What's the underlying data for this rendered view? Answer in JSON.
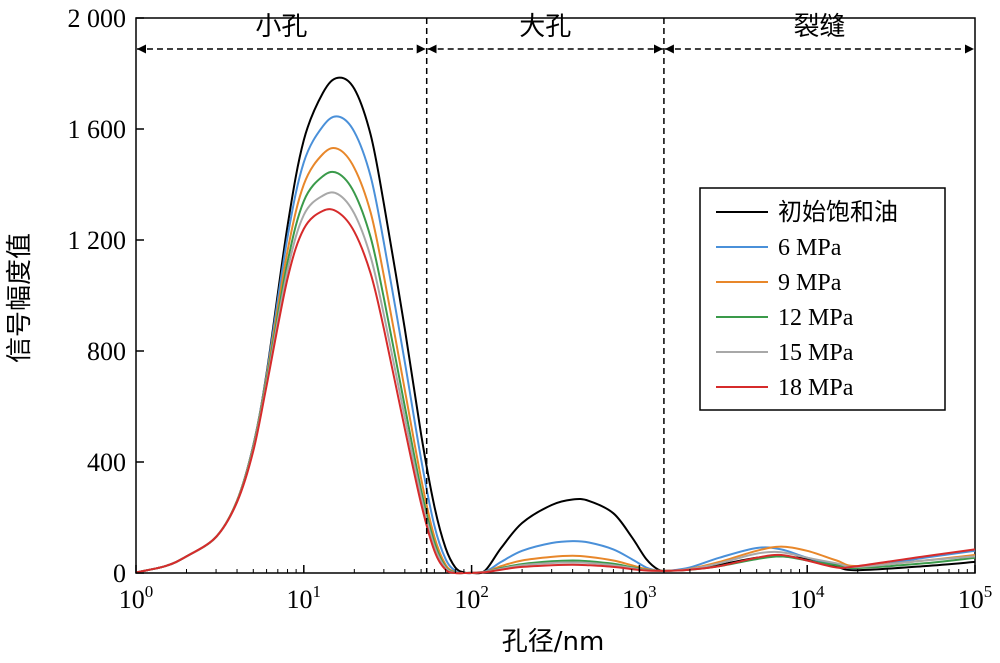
{
  "chart_data": {
    "type": "line",
    "xlabel": "孔径/nm",
    "ylabel": "信号幅度值",
    "x_scale": "log",
    "xlim": [
      1,
      100000
    ],
    "ylim": [
      0,
      2000
    ],
    "x_ticks": [
      {
        "value": 1,
        "base": "10",
        "exp": "0"
      },
      {
        "value": 10,
        "base": "10",
        "exp": "1"
      },
      {
        "value": 100,
        "base": "10",
        "exp": "2"
      },
      {
        "value": 1000,
        "base": "10",
        "exp": "3"
      },
      {
        "value": 10000,
        "base": "10",
        "exp": "4"
      },
      {
        "value": 100000,
        "base": "10",
        "exp": "5"
      }
    ],
    "y_ticks": [
      {
        "value": 0,
        "label": "0"
      },
      {
        "value": 400,
        "label": "400"
      },
      {
        "value": 800,
        "label": "800"
      },
      {
        "value": 1200,
        "label": "1 200"
      },
      {
        "value": 1600,
        "label": "1 600"
      },
      {
        "value": 2000,
        "label": "2 000"
      }
    ],
    "grid": false,
    "legend_position": "right",
    "region_dividers": [
      54,
      1400
    ],
    "regions": [
      {
        "label": "小孔",
        "from": 1,
        "to": 54
      },
      {
        "label": "大孔",
        "from": 54,
        "to": 1400
      },
      {
        "label": "裂缝",
        "from": 1400,
        "to": 100000
      }
    ],
    "series": [
      {
        "name": "初始饱和油",
        "color": "#000000",
        "points": [
          [
            1,
            2
          ],
          [
            1.5,
            25
          ],
          [
            2,
            60
          ],
          [
            3,
            130
          ],
          [
            4,
            260
          ],
          [
            5,
            460
          ],
          [
            6,
            720
          ],
          [
            8,
            1250
          ],
          [
            10,
            1560
          ],
          [
            13,
            1730
          ],
          [
            16,
            1785
          ],
          [
            20,
            1745
          ],
          [
            25,
            1580
          ],
          [
            30,
            1330
          ],
          [
            40,
            880
          ],
          [
            50,
            500
          ],
          [
            60,
            240
          ],
          [
            70,
            90
          ],
          [
            80,
            20
          ],
          [
            90,
            2
          ],
          [
            100,
            0
          ],
          [
            120,
            8
          ],
          [
            150,
            90
          ],
          [
            200,
            180
          ],
          [
            300,
            245
          ],
          [
            400,
            265
          ],
          [
            500,
            260
          ],
          [
            700,
            215
          ],
          [
            900,
            130
          ],
          [
            1100,
            50
          ],
          [
            1300,
            12
          ],
          [
            1500,
            8
          ],
          [
            2000,
            15
          ],
          [
            3000,
            30
          ],
          [
            5000,
            55
          ],
          [
            7000,
            60
          ],
          [
            10000,
            50
          ],
          [
            15000,
            22
          ],
          [
            20000,
            10
          ],
          [
            50000,
            25
          ],
          [
            100000,
            40
          ]
        ]
      },
      {
        "name": "6 MPa",
        "color": "#4a90d9",
        "points": [
          [
            1,
            2
          ],
          [
            1.5,
            25
          ],
          [
            2,
            60
          ],
          [
            3,
            130
          ],
          [
            4,
            260
          ],
          [
            5,
            460
          ],
          [
            6,
            715
          ],
          [
            8,
            1210
          ],
          [
            10,
            1480
          ],
          [
            13,
            1610
          ],
          [
            16,
            1645
          ],
          [
            20,
            1590
          ],
          [
            25,
            1430
          ],
          [
            30,
            1190
          ],
          [
            40,
            760
          ],
          [
            50,
            410
          ],
          [
            60,
            170
          ],
          [
            70,
            50
          ],
          [
            80,
            8
          ],
          [
            90,
            0
          ],
          [
            120,
            5
          ],
          [
            150,
            40
          ],
          [
            200,
            80
          ],
          [
            300,
            108
          ],
          [
            400,
            115
          ],
          [
            500,
            110
          ],
          [
            700,
            85
          ],
          [
            900,
            50
          ],
          [
            1100,
            20
          ],
          [
            1300,
            8
          ],
          [
            1500,
            8
          ],
          [
            2000,
            20
          ],
          [
            3000,
            55
          ],
          [
            5000,
            90
          ],
          [
            7000,
            85
          ],
          [
            10000,
            55
          ],
          [
            15000,
            30
          ],
          [
            20000,
            18
          ],
          [
            50000,
            55
          ],
          [
            100000,
            80
          ]
        ]
      },
      {
        "name": "9 MPa",
        "color": "#e8872a",
        "points": [
          [
            1,
            2
          ],
          [
            1.5,
            25
          ],
          [
            2,
            60
          ],
          [
            3,
            130
          ],
          [
            4,
            260
          ],
          [
            5,
            455
          ],
          [
            6,
            705
          ],
          [
            8,
            1160
          ],
          [
            10,
            1400
          ],
          [
            13,
            1510
          ],
          [
            16,
            1528
          ],
          [
            20,
            1460
          ],
          [
            25,
            1300
          ],
          [
            30,
            1070
          ],
          [
            40,
            660
          ],
          [
            50,
            340
          ],
          [
            60,
            130
          ],
          [
            70,
            30
          ],
          [
            80,
            3
          ],
          [
            90,
            0
          ],
          [
            120,
            4
          ],
          [
            150,
            25
          ],
          [
            200,
            45
          ],
          [
            300,
            58
          ],
          [
            400,
            62
          ],
          [
            500,
            58
          ],
          [
            700,
            45
          ],
          [
            900,
            28
          ],
          [
            1100,
            14
          ],
          [
            1300,
            8
          ],
          [
            1500,
            8
          ],
          [
            2000,
            15
          ],
          [
            3000,
            40
          ],
          [
            5000,
            80
          ],
          [
            7000,
            95
          ],
          [
            10000,
            80
          ],
          [
            15000,
            45
          ],
          [
            20000,
            25
          ],
          [
            50000,
            45
          ],
          [
            100000,
            65
          ]
        ]
      },
      {
        "name": "12 MPa",
        "color": "#3a9a4a",
        "points": [
          [
            1,
            2
          ],
          [
            1.5,
            25
          ],
          [
            2,
            60
          ],
          [
            3,
            130
          ],
          [
            4,
            258
          ],
          [
            5,
            450
          ],
          [
            6,
            695
          ],
          [
            8,
            1120
          ],
          [
            10,
            1340
          ],
          [
            13,
            1430
          ],
          [
            16,
            1440
          ],
          [
            20,
            1370
          ],
          [
            25,
            1210
          ],
          [
            30,
            990
          ],
          [
            40,
            600
          ],
          [
            50,
            300
          ],
          [
            60,
            110
          ],
          [
            70,
            22
          ],
          [
            80,
            2
          ],
          [
            90,
            0
          ],
          [
            120,
            4
          ],
          [
            150,
            18
          ],
          [
            200,
            32
          ],
          [
            300,
            42
          ],
          [
            400,
            45
          ],
          [
            500,
            42
          ],
          [
            700,
            33
          ],
          [
            900,
            21
          ],
          [
            1100,
            11
          ],
          [
            1300,
            8
          ],
          [
            1500,
            8
          ],
          [
            2000,
            12
          ],
          [
            3000,
            25
          ],
          [
            5000,
            50
          ],
          [
            7000,
            60
          ],
          [
            10000,
            45
          ],
          [
            15000,
            28
          ],
          [
            20000,
            18
          ],
          [
            50000,
            35
          ],
          [
            100000,
            55
          ]
        ]
      },
      {
        "name": "15 MPa",
        "color": "#a8a8a8",
        "points": [
          [
            1,
            2
          ],
          [
            1.5,
            25
          ],
          [
            2,
            60
          ],
          [
            3,
            130
          ],
          [
            4,
            256
          ],
          [
            5,
            445
          ],
          [
            6,
            685
          ],
          [
            8,
            1090
          ],
          [
            10,
            1290
          ],
          [
            13,
            1360
          ],
          [
            16,
            1365
          ],
          [
            20,
            1295
          ],
          [
            25,
            1140
          ],
          [
            30,
            930
          ],
          [
            40,
            560
          ],
          [
            50,
            275
          ],
          [
            60,
            95
          ],
          [
            70,
            18
          ],
          [
            80,
            1
          ],
          [
            90,
            0
          ],
          [
            120,
            4
          ],
          [
            150,
            15
          ],
          [
            200,
            28
          ],
          [
            300,
            36
          ],
          [
            400,
            38
          ],
          [
            500,
            36
          ],
          [
            700,
            28
          ],
          [
            900,
            18
          ],
          [
            1100,
            10
          ],
          [
            1300,
            8
          ],
          [
            1500,
            8
          ],
          [
            2000,
            14
          ],
          [
            3000,
            35
          ],
          [
            5000,
            70
          ],
          [
            7000,
            75
          ],
          [
            10000,
            55
          ],
          [
            15000,
            35
          ],
          [
            20000,
            22
          ],
          [
            50000,
            45
          ],
          [
            100000,
            60
          ]
        ]
      },
      {
        "name": "18 MPa",
        "color": "#d62b2b",
        "points": [
          [
            1,
            2
          ],
          [
            1.5,
            25
          ],
          [
            2,
            60
          ],
          [
            3,
            130
          ],
          [
            4,
            255
          ],
          [
            5,
            440
          ],
          [
            6,
            675
          ],
          [
            8,
            1060
          ],
          [
            10,
            1240
          ],
          [
            13,
            1305
          ],
          [
            16,
            1300
          ],
          [
            20,
            1230
          ],
          [
            25,
            1080
          ],
          [
            30,
            880
          ],
          [
            40,
            520
          ],
          [
            50,
            250
          ],
          [
            60,
            80
          ],
          [
            70,
            12
          ],
          [
            80,
            0
          ],
          [
            90,
            0
          ],
          [
            120,
            3
          ],
          [
            150,
            12
          ],
          [
            200,
            22
          ],
          [
            300,
            28
          ],
          [
            400,
            30
          ],
          [
            500,
            28
          ],
          [
            700,
            22
          ],
          [
            900,
            14
          ],
          [
            1100,
            9
          ],
          [
            1300,
            8
          ],
          [
            1500,
            8
          ],
          [
            2000,
            12
          ],
          [
            3000,
            25
          ],
          [
            5000,
            55
          ],
          [
            7000,
            65
          ],
          [
            10000,
            45
          ],
          [
            15000,
            20
          ],
          [
            20000,
            25
          ],
          [
            50000,
            60
          ],
          [
            100000,
            85
          ]
        ]
      }
    ]
  }
}
